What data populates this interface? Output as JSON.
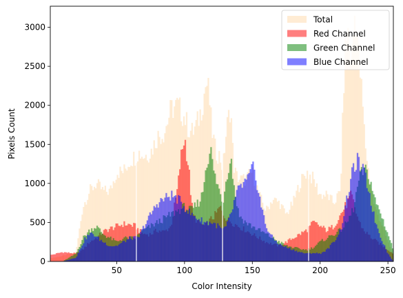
{
  "chart_data": {
    "type": "histogram",
    "xlabel": "Color Intensity",
    "ylabel": "Pixels Count",
    "xlim": [
      1,
      254
    ],
    "ylim": [
      0,
      3270
    ],
    "x_ticks": [
      50,
      100,
      150,
      200,
      250
    ],
    "y_ticks": [
      0,
      500,
      1000,
      1500,
      2000,
      2500,
      3000
    ],
    "grid": false,
    "legend_position": "top-right",
    "series": [
      {
        "name": "Total",
        "color": "#ffdcb0",
        "x": [
          1,
          10,
          20,
          25,
          30,
          35,
          40,
          45,
          50,
          55,
          60,
          64,
          66,
          70,
          75,
          80,
          85,
          90,
          95,
          98,
          100,
          103,
          106,
          110,
          113,
          116,
          118,
          120,
          123,
          126,
          128,
          131,
          134,
          136,
          138,
          141,
          145,
          150,
          155,
          160,
          165,
          170,
          175,
          180,
          185,
          190,
          195,
          200,
          205,
          210,
          215,
          218,
          220,
          223,
          226,
          229,
          231,
          233,
          236,
          240,
          245,
          250,
          254
        ],
        "y": [
          40,
          70,
          120,
          700,
          900,
          1000,
          900,
          900,
          1150,
          1150,
          1300,
          1350,
          1400,
          1350,
          1400,
          1600,
          1650,
          1950,
          2000,
          1900,
          1850,
          1700,
          1650,
          1800,
          2000,
          2300,
          2150,
          1700,
          1400,
          1350,
          1200,
          1700,
          2000,
          1250,
          1100,
          1050,
          1050,
          1150,
          850,
          650,
          800,
          750,
          600,
          750,
          1000,
          1150,
          1050,
          850,
          850,
          750,
          900,
          2600,
          3000,
          2550,
          3270,
          2500,
          2100,
          1550,
          1100,
          700,
          500,
          250,
          100
        ]
      },
      {
        "name": "Red Channel",
        "color": "#ff0000",
        "x": [
          1,
          10,
          20,
          25,
          30,
          35,
          40,
          45,
          50,
          55,
          60,
          64,
          66,
          70,
          75,
          80,
          85,
          90,
          95,
          97,
          100,
          103,
          106,
          110,
          115,
          120,
          123,
          126,
          128,
          131,
          135,
          140,
          145,
          150,
          155,
          160,
          165,
          170,
          175,
          180,
          185,
          190,
          195,
          200,
          205,
          210,
          215,
          220,
          223,
          226,
          229,
          232,
          235,
          238,
          242,
          246,
          250,
          254
        ],
        "y": [
          80,
          120,
          100,
          150,
          250,
          300,
          380,
          420,
          450,
          480,
          470,
          450,
          400,
          350,
          350,
          400,
          380,
          450,
          950,
          1300,
          1600,
          1200,
          600,
          500,
          450,
          550,
          600,
          700,
          620,
          550,
          500,
          450,
          400,
          350,
          300,
          250,
          220,
          200,
          250,
          300,
          350,
          400,
          500,
          450,
          400,
          450,
          600,
          750,
          850,
          650,
          500,
          400,
          350,
          300,
          250,
          200,
          150,
          100
        ]
      },
      {
        "name": "Green Channel",
        "color": "#008000",
        "x": [
          1,
          10,
          20,
          25,
          30,
          35,
          40,
          45,
          50,
          55,
          60,
          64,
          66,
          70,
          75,
          80,
          85,
          90,
          95,
          100,
          105,
          110,
          113,
          116,
          119,
          122,
          125,
          128,
          131,
          134,
          137,
          140,
          145,
          150,
          155,
          160,
          165,
          170,
          175,
          180,
          185,
          190,
          195,
          200,
          205,
          210,
          215,
          220,
          225,
          228,
          231,
          234,
          237,
          240,
          245,
          250,
          254
        ],
        "y": [
          0,
          0,
          100,
          300,
          400,
          450,
          350,
          300,
          250,
          300,
          300,
          300,
          350,
          400,
          450,
          500,
          550,
          600,
          650,
          700,
          650,
          750,
          850,
          1250,
          1450,
          1100,
          950,
          750,
          1100,
          1350,
          900,
          600,
          500,
          450,
          400,
          350,
          300,
          250,
          200,
          180,
          160,
          150,
          180,
          250,
          300,
          350,
          400,
          500,
          700,
          1000,
          1150,
          1150,
          1050,
          800,
          600,
          350,
          150
        ]
      },
      {
        "name": "Blue Channel",
        "color": "#0000ff",
        "x": [
          1,
          10,
          20,
          24,
          27,
          30,
          33,
          36,
          40,
          45,
          50,
          55,
          60,
          64,
          66,
          70,
          75,
          80,
          85,
          90,
          95,
          100,
          105,
          110,
          115,
          120,
          125,
          128,
          131,
          135,
          138,
          141,
          144,
          147,
          150,
          153,
          156,
          160,
          165,
          170,
          175,
          180,
          185,
          190,
          195,
          200,
          205,
          210,
          215,
          218,
          221,
          224,
          227,
          230,
          233,
          236,
          240,
          245,
          250,
          254
        ],
        "y": [
          0,
          0,
          50,
          200,
          300,
          350,
          350,
          300,
          250,
          200,
          200,
          250,
          300,
          300,
          300,
          450,
          600,
          750,
          800,
          850,
          800,
          700,
          600,
          550,
          500,
          500,
          450,
          400,
          450,
          650,
          850,
          950,
          1000,
          1050,
          1200,
          1050,
          750,
          450,
          300,
          220,
          180,
          150,
          120,
          100,
          110,
          100,
          150,
          250,
          400,
          650,
          900,
          1150,
          1300,
          1200,
          1100,
          900,
          550,
          300,
          100,
          0
        ]
      }
    ]
  }
}
